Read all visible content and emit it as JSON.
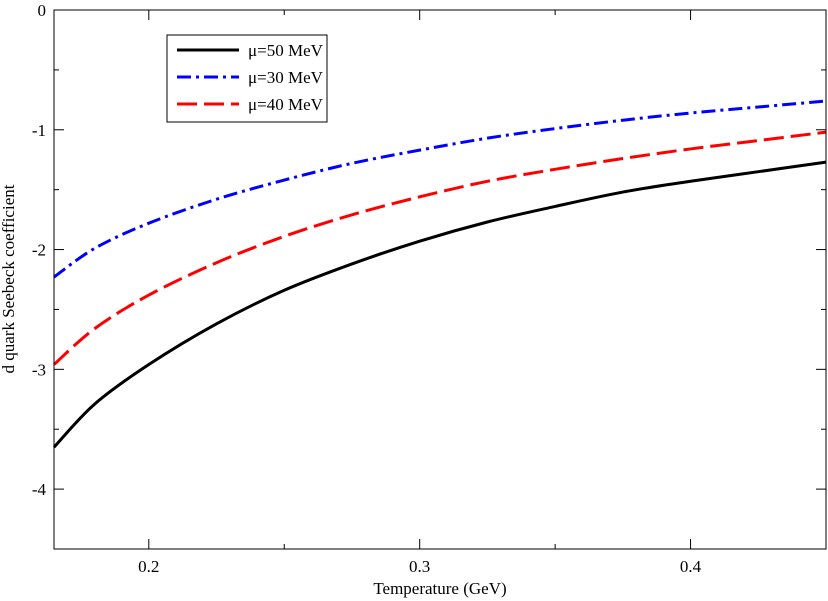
{
  "chart_data": {
    "type": "line",
    "title": "",
    "xlabel": "Temperature (GeV)",
    "ylabel": "d  quark Seebeck coefficient",
    "xlim": [
      0.165,
      0.45
    ],
    "ylim": [
      -4.5,
      0
    ],
    "x_ticks": [
      {
        "value": 0.2,
        "label": "0.2"
      },
      {
        "value": 0.3,
        "label": "0.3"
      },
      {
        "value": 0.4,
        "label": "0.4"
      }
    ],
    "y_ticks": [
      {
        "value": 0,
        "label": "0"
      },
      {
        "value": -1,
        "label": "-1"
      },
      {
        "value": -2,
        "label": "-2"
      },
      {
        "value": -3,
        "label": "-3"
      },
      {
        "value": -4,
        "label": "-4"
      }
    ],
    "x_minor_step": 0.05,
    "y_minor_step": 0.5,
    "legend_position": "top-left",
    "series": [
      {
        "name": "μ=50 MeV",
        "color": "#000000",
        "dash": "solid",
        "x": [
          0.165,
          0.18,
          0.2,
          0.225,
          0.25,
          0.275,
          0.3,
          0.325,
          0.35,
          0.375,
          0.4,
          0.425,
          0.45
        ],
        "y": [
          -3.65,
          -3.29,
          -2.96,
          -2.62,
          -2.34,
          -2.12,
          -1.93,
          -1.77,
          -1.64,
          -1.52,
          -1.43,
          -1.35,
          -1.27
        ]
      },
      {
        "name": "μ=30 MeV",
        "color": "#0000ff",
        "dash": "dashdot",
        "x": [
          0.165,
          0.18,
          0.2,
          0.225,
          0.25,
          0.275,
          0.3,
          0.325,
          0.35,
          0.375,
          0.4,
          0.425,
          0.45
        ],
        "y": [
          -2.23,
          -1.99,
          -1.78,
          -1.58,
          -1.42,
          -1.28,
          -1.17,
          -1.07,
          -0.99,
          -0.92,
          -0.86,
          -0.81,
          -0.76
        ]
      },
      {
        "name": "μ=40 MeV",
        "color": "#ff0000",
        "dash": "dashed",
        "x": [
          0.165,
          0.18,
          0.2,
          0.225,
          0.25,
          0.275,
          0.3,
          0.325,
          0.35,
          0.375,
          0.4,
          0.425,
          0.45
        ],
        "y": [
          -2.96,
          -2.66,
          -2.38,
          -2.11,
          -1.89,
          -1.71,
          -1.56,
          -1.43,
          -1.33,
          -1.24,
          -1.16,
          -1.09,
          -1.02
        ]
      }
    ]
  }
}
